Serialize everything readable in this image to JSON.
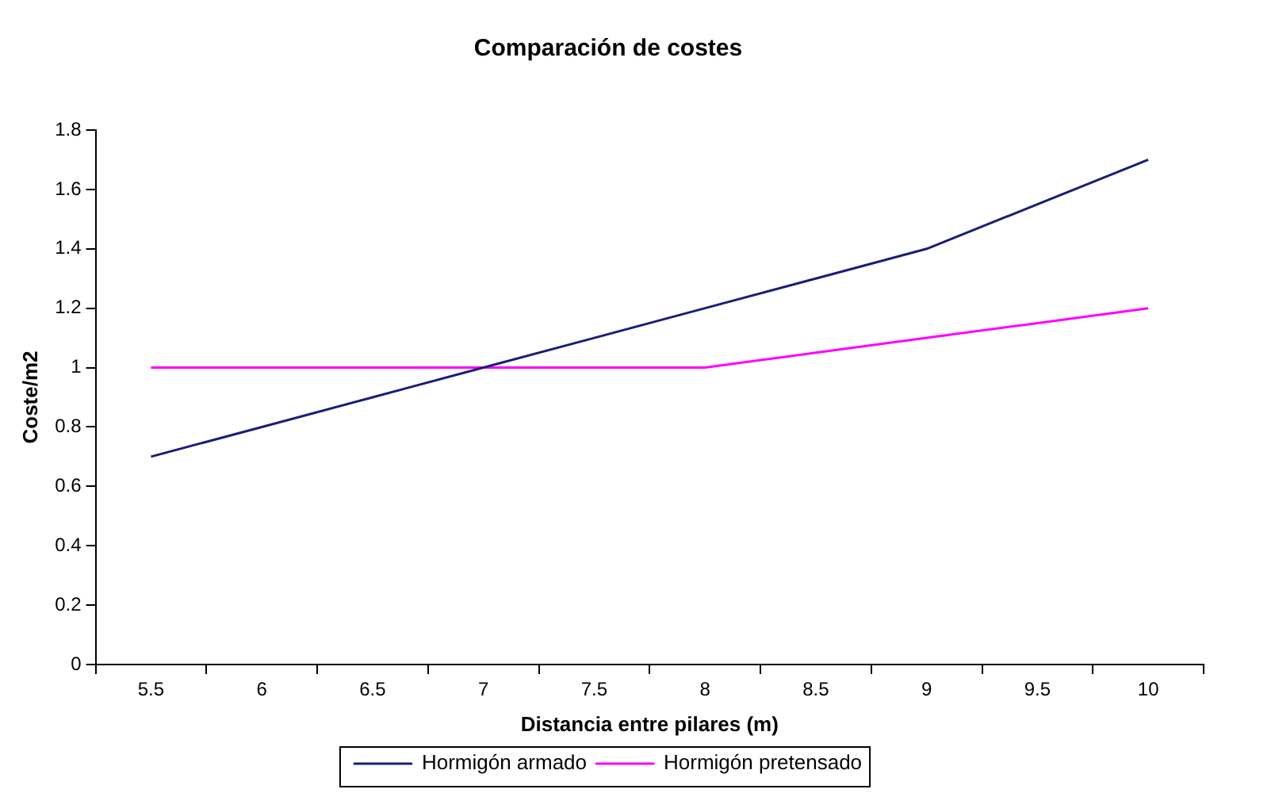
{
  "chart_data": {
    "type": "line",
    "title": "Comparación de costes",
    "xlabel": "Distancia entre pilares (m)",
    "ylabel": "Coste/m2",
    "categories": [
      "5.5",
      "6",
      "6.5",
      "7",
      "7.5",
      "8",
      "8.5",
      "9",
      "9.5",
      "10"
    ],
    "series": [
      {
        "name": "Hormigón armado",
        "color": "#1c1c78",
        "values": [
          0.7,
          0.8,
          0.9,
          1.0,
          1.1,
          1.2,
          1.3,
          1.4,
          1.55,
          1.7
        ]
      },
      {
        "name": "Hormigón pretensado",
        "color": "#ff00ff",
        "values": [
          1,
          1,
          1,
          1,
          1,
          1,
          1.05,
          1.1,
          1.15,
          1.2
        ]
      }
    ],
    "ylim": [
      0,
      1.8
    ],
    "yticks": [
      0,
      0.2,
      0.4,
      0.6,
      0.8,
      1,
      1.2,
      1.4,
      1.6,
      1.8
    ],
    "grid": false,
    "legend": "bottom",
    "marker": "none",
    "line_style": "solid"
  }
}
